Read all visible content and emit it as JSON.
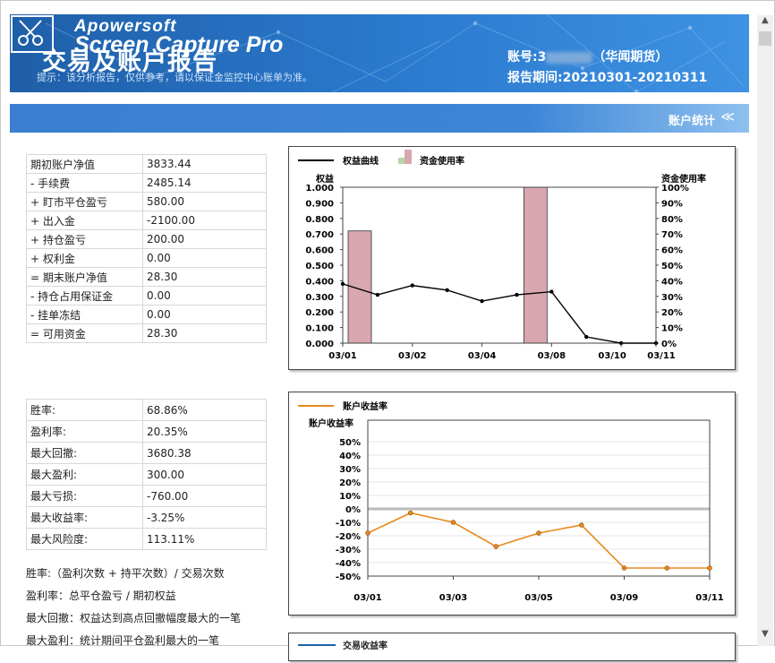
{
  "header": {
    "watermark_top": "Apowersoft",
    "watermark_bottom": "Screen Capture Pro",
    "title": "交易及账户报告",
    "hint": "提示：该分析报告，仅供参考，请以保证金监控中心账单为准。",
    "account_prefix": "账号:3",
    "account_broker": "（华闻期货）",
    "period": "报告期间:20210301-20210311"
  },
  "section": {
    "label": "账户统计",
    "toggle": "≪"
  },
  "summary_table": [
    {
      "label": "期初账户净值",
      "value": "3833.44"
    },
    {
      "label": "- 手续费",
      "value": "2485.14"
    },
    {
      "label": "+ 盯市平仓盈亏",
      "value": "580.00"
    },
    {
      "label": "+ 出入金",
      "value": "-2100.00"
    },
    {
      "label": "+ 持仓盈亏",
      "value": "200.00"
    },
    {
      "label": "+ 权利金",
      "value": "0.00"
    },
    {
      "label": "= 期末账户净值",
      "value": "28.30"
    },
    {
      "label": "- 持仓占用保证金",
      "value": "0.00"
    },
    {
      "label": "- 挂单冻结",
      "value": "0.00"
    },
    {
      "label": "= 可用资金",
      "value": "28.30"
    }
  ],
  "ratio_table": [
    {
      "label": "胜率:",
      "value": "68.86%"
    },
    {
      "label": "盈利率:",
      "value": "20.35%"
    },
    {
      "label": "最大回撤:",
      "value": "3680.38"
    },
    {
      "label": "最大盈利:",
      "value": "300.00"
    },
    {
      "label": "最大亏损:",
      "value": "-760.00"
    },
    {
      "label": "最大收益率:",
      "value": "-3.25%"
    },
    {
      "label": "最大风险度:",
      "value": "113.11%"
    }
  ],
  "notes": [
    "胜率:（盈利次数 + 持平次数）/ 交易次数",
    "盈利率：总平仓盈亏 / 期初权益",
    "最大回撤：权益达到高点回撤幅度最大的一笔",
    "最大盈利：统计期间平仓盈利最大的一笔"
  ],
  "chart_data": [
    {
      "type": "line",
      "legend": [
        "权益曲线",
        "资金使用率"
      ],
      "ylabel": "权益",
      "y2label": "资金使用率",
      "ylim": [
        0,
        1
      ],
      "y2lim": [
        0,
        100
      ],
      "yticks": [
        "0.000",
        "0.100",
        "0.200",
        "0.300",
        "0.400",
        "0.500",
        "0.600",
        "0.700",
        "0.800",
        "0.900",
        "1.000"
      ],
      "y2ticks": [
        "0%",
        "10%",
        "20%",
        "30%",
        "40%",
        "50%",
        "60%",
        "70%",
        "80%",
        "90%",
        "100%"
      ],
      "xticks": [
        "03/01",
        "03/02",
        "03/04",
        "03/08",
        "03/10",
        "03/11"
      ],
      "colors": {
        "line": "#000000",
        "bar": "#d9a7b0",
        "bar_legend_green": "#b6d7a8"
      },
      "series": [
        {
          "name": "权益曲线",
          "kind": "line",
          "x": [
            "03/01",
            "03/01b",
            "03/02",
            "03/03",
            "03/04",
            "03/05",
            "03/08",
            "03/09",
            "03/10",
            "03/11"
          ],
          "values": [
            0.38,
            0.31,
            0.37,
            0.34,
            0.27,
            0.31,
            0.33,
            0.04,
            0.0,
            0.0
          ]
        },
        {
          "name": "资金使用率",
          "kind": "bar",
          "x": [
            "03/01",
            "03/08"
          ],
          "values": [
            72,
            100
          ]
        }
      ]
    },
    {
      "type": "line",
      "legend": [
        "账户收益率"
      ],
      "ylabel": "账户收益率",
      "ylim": [
        -50,
        50
      ],
      "yticks": [
        "50%",
        "40%",
        "30%",
        "20%",
        "10%",
        "0%",
        "-10%",
        "-20%",
        "-30%",
        "-40%",
        "-50%"
      ],
      "xticks": [
        "03/01",
        "03/03",
        "03/05",
        "03/09",
        "03/11"
      ],
      "colors": {
        "line": "#e8891f",
        "zero": "#bbbbbb"
      },
      "series": [
        {
          "name": "账户收益率",
          "x": [
            "03/01",
            "03/02",
            "03/03",
            "03/04",
            "03/05",
            "03/08",
            "03/09",
            "03/10",
            "03/11"
          ],
          "values": [
            -18,
            -3,
            -10,
            -28,
            -18,
            -12,
            -44,
            -44,
            -44
          ]
        }
      ]
    }
  ],
  "chart3_legend": "交易收益率"
}
